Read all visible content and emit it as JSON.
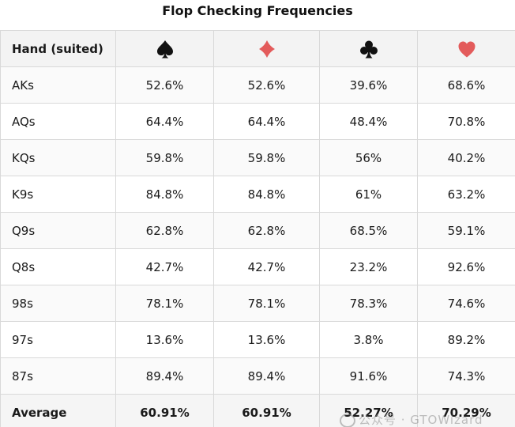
{
  "title": "Flop Checking Frequencies",
  "header": {
    "hand_label": "Hand (suited)",
    "suits": [
      {
        "icon": "spade-icon",
        "color": "#111111"
      },
      {
        "icon": "diamond-icon",
        "color": "#e35b5b"
      },
      {
        "icon": "club-icon",
        "color": "#111111"
      },
      {
        "icon": "heart-icon",
        "color": "#e35b5b"
      }
    ]
  },
  "rows": [
    {
      "hand": "AKs",
      "v": [
        "52.6%",
        "52.6%",
        "39.6%",
        "68.6%"
      ]
    },
    {
      "hand": "AQs",
      "v": [
        "64.4%",
        "64.4%",
        "48.4%",
        "70.8%"
      ]
    },
    {
      "hand": "KQs",
      "v": [
        "59.8%",
        "59.8%",
        "56%",
        "40.2%"
      ]
    },
    {
      "hand": "K9s",
      "v": [
        "84.8%",
        "84.8%",
        "61%",
        "63.2%"
      ]
    },
    {
      "hand": "Q9s",
      "v": [
        "62.8%",
        "62.8%",
        "68.5%",
        "59.1%"
      ]
    },
    {
      "hand": "Q8s",
      "v": [
        "42.7%",
        "42.7%",
        "23.2%",
        "92.6%"
      ]
    },
    {
      "hand": "98s",
      "v": [
        "78.1%",
        "78.1%",
        "78.3%",
        "74.6%"
      ]
    },
    {
      "hand": "97s",
      "v": [
        "13.6%",
        "13.6%",
        "3.8%",
        "89.2%"
      ]
    },
    {
      "hand": "87s",
      "v": [
        "89.4%",
        "89.4%",
        "91.6%",
        "74.3%"
      ]
    }
  ],
  "average": {
    "label": "Average",
    "v": [
      "60.91%",
      "60.91%",
      "52.27%",
      "70.29%"
    ]
  },
  "watermark": "公众号 · GTOWizard"
}
